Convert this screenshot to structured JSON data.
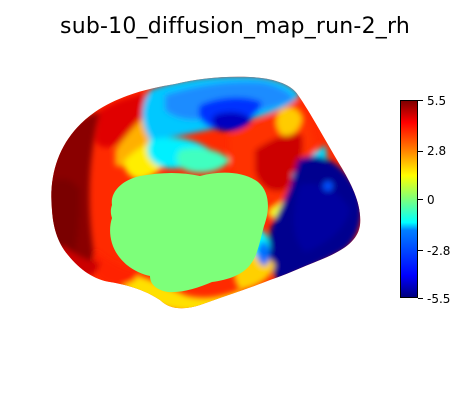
{
  "figure": {
    "title": "sub-10_diffusion_map_run-2_rh"
  },
  "colorbar": {
    "ticks": [
      {
        "label": "5.5"
      },
      {
        "label": "2.8"
      },
      {
        "label": "0"
      },
      {
        "label": "-2.8"
      },
      {
        "label": "-5.5"
      }
    ]
  },
  "colors": {
    "dark_red": "#7f0000",
    "red": "#ff0000",
    "orange": "#ff7f00",
    "yellow": "#ffff00",
    "green": "#7dff7a",
    "cyan": "#00ffff",
    "light_blue": "#007fff",
    "blue": "#0000ff",
    "dark_blue": "#00007f"
  }
}
